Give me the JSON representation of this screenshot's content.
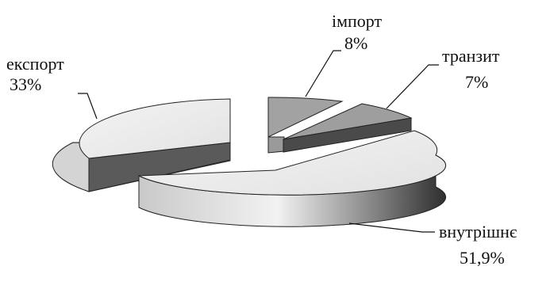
{
  "chart_data": {
    "type": "pie",
    "style": "3d-exploded",
    "title": "",
    "legend": "none",
    "slices": [
      {
        "label": "експорт",
        "value": 33,
        "value_label": "33%"
      },
      {
        "label": "імпорт",
        "value": 8,
        "value_label": "8%"
      },
      {
        "label": "транзит",
        "value": 7,
        "value_label": "7%"
      },
      {
        "label": "внутрішнє",
        "value": 51.9,
        "value_label": "51,9%"
      }
    ],
    "colors": {
      "top_light": "#ececec",
      "top_mid": "#a4a4a4",
      "side_light": "#d8d8d8",
      "side_dark": "#505050",
      "outline": "#222222",
      "leader": "#111111"
    }
  }
}
